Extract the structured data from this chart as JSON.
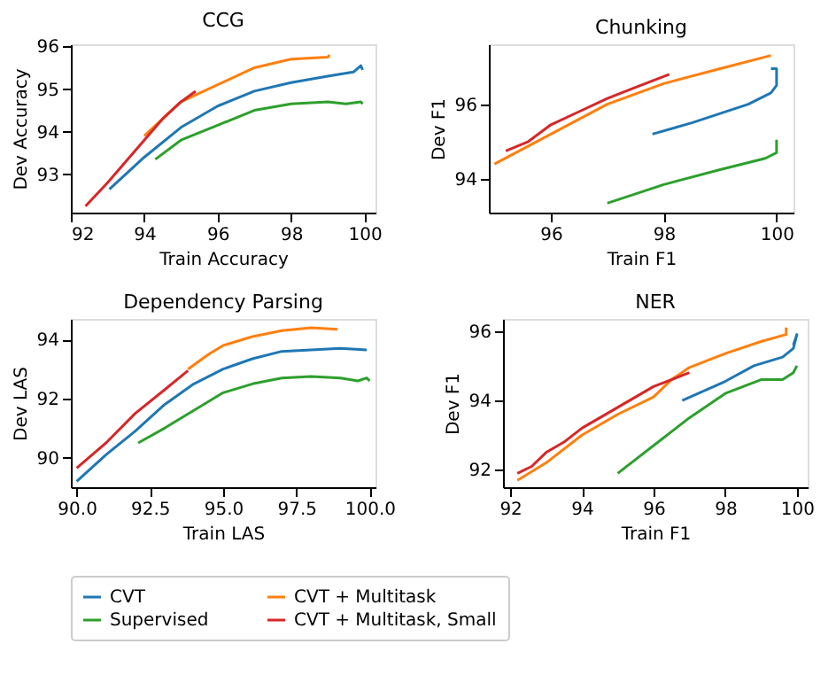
{
  "chart_data": [
    {
      "type": "line",
      "title": "CCG",
      "xlabel": "Train Accuracy",
      "ylabel": "Dev Accuracy",
      "xlim": [
        92,
        100.3
      ],
      "ylim": [
        92.1,
        96.05
      ],
      "xticks": [
        92,
        94,
        96,
        98,
        100
      ],
      "yticks": [
        93,
        94,
        95,
        96
      ],
      "grid": false,
      "legend": "bottom",
      "line_style": "solid",
      "marker": "none",
      "series": [
        {
          "name": "CVT",
          "color": "#1f77b4",
          "x": [
            93.05,
            94,
            95,
            96,
            97,
            98,
            99,
            99.7,
            99.9,
            99.95
          ],
          "values": [
            92.65,
            93.4,
            94.1,
            94.6,
            94.95,
            95.15,
            95.3,
            95.4,
            95.55,
            95.45
          ]
        },
        {
          "name": "CVT + Multitask",
          "color": "#ff7f0e",
          "x": [
            94,
            95,
            96,
            97,
            98,
            99,
            99.05
          ],
          "values": [
            93.9,
            94.7,
            95.1,
            95.5,
            95.7,
            95.75,
            95.8
          ]
        },
        {
          "name": "Supervised",
          "color": "#2ca02c",
          "x": [
            94.3,
            95,
            96,
            97,
            98,
            99,
            99.5,
            99.9,
            99.95
          ],
          "values": [
            93.35,
            93.8,
            94.15,
            94.5,
            94.65,
            94.7,
            94.65,
            94.7,
            94.65
          ]
        },
        {
          "name": "CVT + Multitask, Small",
          "color": "#d62728",
          "x": [
            92.4,
            93,
            93.5,
            94,
            94.5,
            95,
            95.4
          ],
          "values": [
            92.25,
            92.8,
            93.3,
            93.8,
            94.3,
            94.7,
            94.95
          ]
        }
      ]
    },
    {
      "type": "line",
      "title": "Chunking",
      "xlabel": "Train F1",
      "ylabel": "Dev F1",
      "xlim": [
        94.9,
        100.3
      ],
      "ylim": [
        93.1,
        97.6
      ],
      "xticks": [
        96,
        98,
        100
      ],
      "yticks": [
        94,
        96
      ],
      "grid": false,
      "legend": "bottom",
      "line_style": "solid",
      "marker": "none",
      "series": [
        {
          "name": "CVT",
          "color": "#1f77b4",
          "x": [
            97.8,
            98.5,
            99,
            99.5,
            99.9,
            100,
            100,
            99.9
          ],
          "values": [
            95.2,
            95.5,
            95.75,
            96,
            96.3,
            96.5,
            96.95,
            96.95
          ]
        },
        {
          "name": "CVT + Multitask",
          "color": "#ff7f0e",
          "x": [
            95,
            96,
            97,
            98,
            99,
            99.9
          ],
          "values": [
            94.4,
            95.2,
            96.0,
            96.55,
            96.95,
            97.3
          ]
        },
        {
          "name": "Supervised",
          "color": "#2ca02c",
          "x": [
            97,
            98,
            99,
            99.8,
            100,
            100
          ],
          "values": [
            93.35,
            93.85,
            94.25,
            94.55,
            94.7,
            95.05
          ]
        },
        {
          "name": "CVT + Multitask, Small",
          "color": "#d62728",
          "x": [
            95.2,
            95.6,
            96,
            96.5,
            97,
            97.5,
            98.1
          ],
          "values": [
            94.75,
            95.0,
            95.45,
            95.8,
            96.15,
            96.45,
            96.8
          ]
        }
      ]
    },
    {
      "type": "line",
      "title": "Dependency Parsing",
      "xlabel": "Train LAS",
      "ylabel": "Dev LAS",
      "xlim": [
        89.8,
        100.2
      ],
      "ylim": [
        89,
        94.7
      ],
      "xticks": [
        {
          "value": 90,
          "label": "90.0"
        },
        {
          "value": 92.5,
          "label": "92.5"
        },
        {
          "value": 95,
          "label": "95.0"
        },
        {
          "value": 97.5,
          "label": "97.5"
        },
        {
          "value": 100,
          "label": "100.0"
        }
      ],
      "yticks": [
        90,
        92,
        94
      ],
      "grid": false,
      "legend": "bottom",
      "line_style": "solid",
      "marker": "none",
      "series": [
        {
          "name": "CVT",
          "color": "#1f77b4",
          "x": [
            90,
            91,
            92,
            93,
            94,
            95,
            96,
            97,
            98,
            99,
            99.9
          ],
          "values": [
            89.2,
            90.1,
            90.9,
            91.8,
            92.5,
            93.0,
            93.35,
            93.6,
            93.65,
            93.7,
            93.65
          ]
        },
        {
          "name": "CVT + Multitask",
          "color": "#ff7f0e",
          "x": [
            93.8,
            94.5,
            95,
            96,
            97,
            98,
            98.9
          ],
          "values": [
            93,
            93.5,
            93.8,
            94.1,
            94.3,
            94.4,
            94.35
          ]
        },
        {
          "name": "Supervised",
          "color": "#2ca02c",
          "x": [
            92.1,
            93,
            94,
            95,
            96,
            97,
            98,
            99,
            99.6,
            99.9,
            100
          ],
          "values": [
            90.5,
            91,
            91.6,
            92.2,
            92.5,
            92.7,
            92.75,
            92.7,
            92.6,
            92.7,
            92.6
          ]
        },
        {
          "name": "CVT + Multitask, Small",
          "color": "#d62728",
          "x": [
            90,
            91,
            92,
            93,
            93.8
          ],
          "values": [
            89.65,
            90.5,
            91.5,
            92.3,
            92.95
          ]
        }
      ]
    },
    {
      "type": "line",
      "title": "NER",
      "xlabel": "Train F1",
      "ylabel": "Dev F1",
      "xlim": [
        91.8,
        100.3
      ],
      "ylim": [
        91.5,
        96.35
      ],
      "xticks": [
        92,
        94,
        96,
        98,
        100
      ],
      "yticks": [
        92,
        94,
        96
      ],
      "grid": false,
      "legend": "bottom",
      "line_style": "solid",
      "marker": "none",
      "series": [
        {
          "name": "CVT",
          "color": "#1f77b4",
          "x": [
            96.8,
            98,
            98.8,
            99.6,
            99.9,
            100,
            99.9
          ],
          "values": [
            94,
            94.55,
            95,
            95.25,
            95.5,
            95.9,
            95.6
          ]
        },
        {
          "name": "CVT + Multitask",
          "color": "#ff7f0e",
          "x": [
            92.2,
            93,
            94,
            95,
            96,
            96.5,
            97,
            98,
            99,
            99.7,
            99.7
          ],
          "values": [
            91.7,
            92.2,
            93,
            93.6,
            94.1,
            94.6,
            94.95,
            95.35,
            95.7,
            95.9,
            96.1
          ]
        },
        {
          "name": "Supervised",
          "color": "#2ca02c",
          "x": [
            95,
            96,
            97,
            98,
            99,
            99.6,
            99.9,
            100
          ],
          "values": [
            91.9,
            92.7,
            93.5,
            94.2,
            94.6,
            94.6,
            94.8,
            95
          ]
        },
        {
          "name": "CVT + Multitask, Small",
          "color": "#d62728",
          "x": [
            92.2,
            92.6,
            93,
            93.5,
            94,
            95,
            96,
            97
          ],
          "values": [
            91.9,
            92.1,
            92.5,
            92.8,
            93.2,
            93.8,
            94.4,
            94.8
          ]
        }
      ]
    }
  ]
}
